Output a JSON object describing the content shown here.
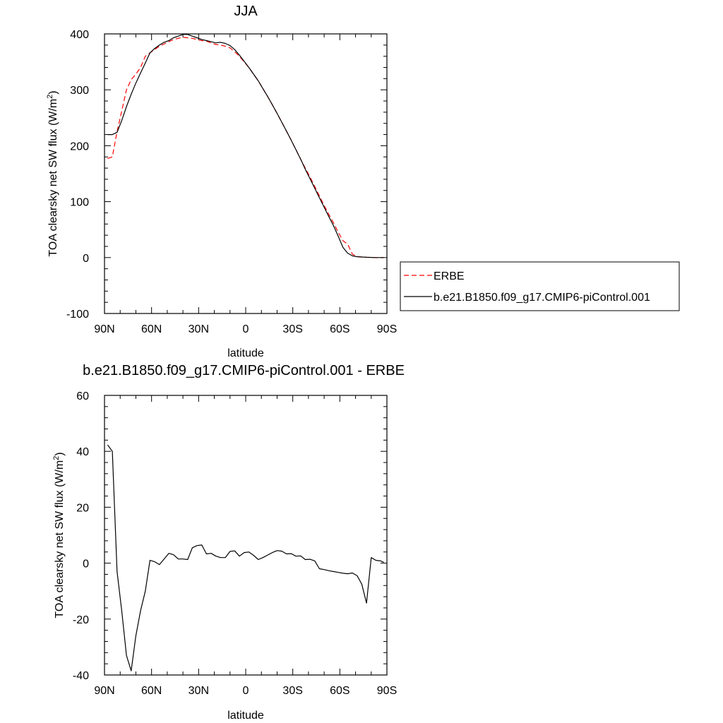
{
  "chart_data": [
    {
      "type": "line",
      "title": "JJA",
      "xlabel": "latitude",
      "ylabel_main": "TOA clearsky net SW flux (W/m",
      "ylabel_sup": "2",
      "ylabel_close": ")",
      "xlim": [
        90,
        -90
      ],
      "ylim": [
        -100,
        400
      ],
      "x_ticks": [
        90,
        60,
        30,
        0,
        -30,
        -60,
        -90
      ],
      "x_tick_labels": [
        "90N",
        "60N",
        "30N",
        "0",
        "30S",
        "60S",
        "90S"
      ],
      "y_ticks": [
        -100,
        0,
        100,
        200,
        300,
        400
      ],
      "y_tick_labels": [
        "-100",
        "0",
        "100",
        "200",
        "300",
        "400"
      ],
      "legend_position": "right",
      "series": [
        {
          "name": "ERBE",
          "color": "#ff0000",
          "style": "dashed",
          "x": [
            88,
            85,
            82,
            79,
            76,
            73,
            70,
            67,
            64,
            61,
            58,
            55,
            52,
            49,
            46,
            43,
            40,
            37,
            34,
            31,
            28,
            25,
            22,
            19,
            16,
            13,
            10,
            7,
            4,
            1,
            -2,
            -5,
            -8,
            -11,
            -14,
            -17,
            -20,
            -23,
            -26,
            -29,
            -32,
            -35,
            -38,
            -41,
            -44,
            -47,
            -50,
            -53,
            -56,
            -59,
            -62,
            -65,
            -68,
            -71,
            -74,
            -77,
            -80,
            -83,
            -86,
            -88
          ],
          "y": [
            177,
            180,
            225,
            262,
            300,
            318,
            328,
            340,
            360,
            366,
            372,
            378,
            382,
            386,
            390,
            392,
            394,
            393,
            392,
            390,
            388,
            387,
            384,
            381,
            380,
            378,
            375,
            368,
            360,
            350,
            340,
            328,
            316,
            302,
            288,
            273,
            258,
            242,
            226,
            210,
            193,
            176,
            160,
            144,
            127,
            110,
            93,
            77,
            62,
            45,
            30,
            24,
            6,
            2,
            1,
            0.5,
            0.2,
            0,
            0,
            0
          ]
        },
        {
          "name": "b.e21.B1850.f09_g17.CMIP6-piControl.001",
          "color": "#000000",
          "style": "solid",
          "x": [
            88,
            85,
            82,
            79,
            76,
            73,
            70,
            67,
            64,
            61,
            58,
            55,
            52,
            49,
            46,
            43,
            40,
            37,
            34,
            31,
            28,
            25,
            22,
            19,
            16,
            13,
            10,
            7,
            4,
            1,
            -2,
            -5,
            -8,
            -11,
            -14,
            -17,
            -20,
            -23,
            -26,
            -29,
            -32,
            -35,
            -38,
            -41,
            -44,
            -47,
            -50,
            -53,
            -56,
            -59,
            -62,
            -65,
            -68,
            -71,
            -74,
            -77,
            -80,
            -83,
            -86,
            -88
          ],
          "y": [
            220,
            220,
            224,
            245,
            270,
            292,
            312,
            330,
            348,
            366,
            374,
            380,
            385,
            388,
            393,
            396,
            399,
            399,
            396,
            393,
            390,
            388,
            386,
            384,
            385,
            383,
            379,
            372,
            362,
            351,
            340,
            328,
            316,
            302,
            288,
            273,
            258,
            242,
            226,
            210,
            193,
            176,
            158,
            141,
            124,
            107,
            90,
            73,
            57,
            38,
            18,
            8,
            3,
            1.5,
            1,
            0.5,
            0.2,
            0,
            0,
            0
          ]
        }
      ]
    },
    {
      "type": "line",
      "title": "b.e21.B1850.f09_g17.CMIP6-piControl.001 - ERBE",
      "xlabel": "latitude",
      "ylabel_main": "TOA clearsky net SW flux (W/m",
      "ylabel_sup": "2",
      "ylabel_close": ")",
      "xlim": [
        90,
        -90
      ],
      "ylim": [
        -40,
        60
      ],
      "x_ticks": [
        90,
        60,
        30,
        0,
        -30,
        -60,
        -90
      ],
      "x_tick_labels": [
        "90N",
        "60N",
        "30N",
        "0",
        "30S",
        "60S",
        "90S"
      ],
      "y_ticks": [
        -40,
        -20,
        0,
        20,
        40,
        60
      ],
      "y_tick_labels": [
        "-40",
        "-20",
        "0",
        "20",
        "40",
        "60"
      ],
      "series": [
        {
          "color": "#000000",
          "style": "solid",
          "x": [
            88,
            85,
            82,
            79,
            76,
            73,
            70,
            67,
            64,
            61,
            58,
            55,
            52,
            49,
            46,
            43,
            40,
            37,
            34,
            31,
            28,
            25,
            22,
            19,
            16,
            13,
            10,
            7,
            4,
            1,
            -2,
            -5,
            -8,
            -11,
            -14,
            -17,
            -20,
            -23,
            -26,
            -29,
            -32,
            -35,
            -38,
            -41,
            -44,
            -47,
            -50,
            -53,
            -56,
            -59,
            -62,
            -65,
            -68,
            -71,
            -74,
            -77,
            -80,
            -83,
            -86,
            -88
          ],
          "y": [
            42.3,
            40,
            -3,
            -17,
            -33,
            -38.5,
            -26,
            -17,
            -10,
            1,
            0.5,
            -0.5,
            1.5,
            3.5,
            3,
            1.5,
            1.5,
            1.3,
            5.5,
            6.3,
            6.5,
            3.3,
            3.5,
            2.5,
            2,
            2,
            4.2,
            4.4,
            2.5,
            3.8,
            4,
            2.8,
            1.3,
            2,
            2.9,
            3.8,
            4.5,
            4.3,
            3.3,
            3.4,
            2.5,
            2.6,
            1.3,
            1.4,
            0.8,
            -2,
            -2.3,
            -2.7,
            -3,
            -3.3,
            -3.6,
            -3.8,
            -3.5,
            -4.5,
            -7.5,
            -14.3,
            2,
            1,
            0.8,
            0.3
          ]
        }
      ]
    }
  ]
}
